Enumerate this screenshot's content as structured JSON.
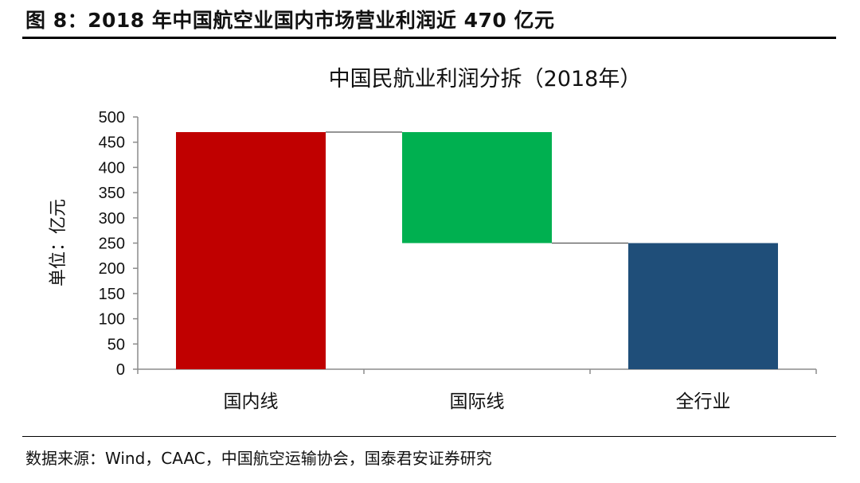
{
  "figure": {
    "caption": "图 8：2018 年中国航空业国内市场营业利润近 470 亿元",
    "source": "数据来源：Wind，CAAC，中国航空运输协会，国泰君安证券研究"
  },
  "chart_data": {
    "type": "bar",
    "subtype": "waterfall",
    "title": "中国民航业利润分拆（2018年）",
    "ylabel": "单位：亿元",
    "xlabel": "",
    "ylim": [
      0,
      500
    ],
    "yticks": [
      0,
      50,
      100,
      150,
      200,
      250,
      300,
      350,
      400,
      450,
      500
    ],
    "categories": [
      "国内线",
      "国际线",
      "全行业"
    ],
    "bars": [
      {
        "category": "国内线",
        "start": 0,
        "end": 470,
        "color": "#c00000"
      },
      {
        "category": "国际线",
        "start": 250,
        "end": 470,
        "color": "#00b050"
      },
      {
        "category": "全行业",
        "start": 0,
        "end": 250,
        "color": "#1f4e79"
      }
    ],
    "connectors": true,
    "grid": false,
    "legend": "none"
  }
}
